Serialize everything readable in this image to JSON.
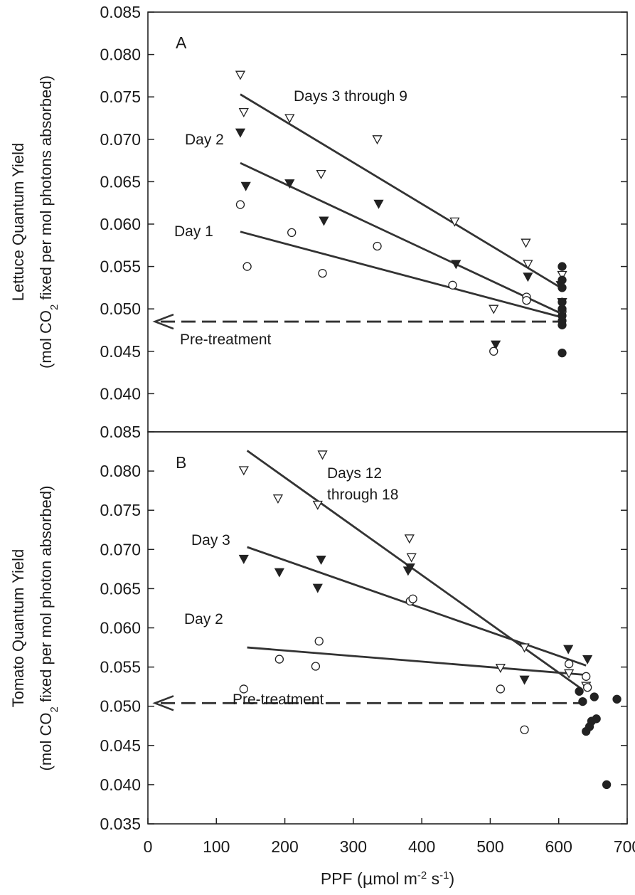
{
  "x_axis": {
    "label_prefix": "PPF (",
    "label_mu": "μ",
    "label_mol": "mol m",
    "label_exp1": "-2",
    "label_s": " s",
    "label_exp2": "-1",
    "label_close": ")",
    "ticks": [
      "0",
      "100",
      "200",
      "300",
      "400",
      "500",
      "600",
      "700"
    ]
  },
  "chart_data": [
    {
      "type": "scatter",
      "panel_label": "A",
      "ylabel_line1": "Lettuce Quantum Yield",
      "ylabel_line2_a": "(mol CO",
      "ylabel_line2_sub": "2",
      "ylabel_line2_b": " fixed per mol photons absorbed)",
      "xlim": [
        0,
        700
      ],
      "ylim": [
        0.035,
        0.085
      ],
      "y_ticks": [
        "0.085",
        "0.080",
        "0.075",
        "0.070",
        "0.065",
        "0.060",
        "0.055",
        "0.050",
        "0.045",
        "0.040"
      ],
      "grid": false,
      "series": [
        {
          "marker": "triangle-open",
          "points": [
            [
              135,
              0.0776
            ],
            [
              140,
              0.0732
            ],
            [
              207,
              0.0725
            ],
            [
              253,
              0.0659
            ],
            [
              335,
              0.07
            ],
            [
              448,
              0.0603
            ],
            [
              505,
              0.05
            ],
            [
              552,
              0.0578
            ],
            [
              555,
              0.0553
            ],
            [
              605,
              0.054
            ]
          ]
        },
        {
          "marker": "triangle-filled",
          "points": [
            [
              135,
              0.0708
            ],
            [
              143,
              0.0645
            ],
            [
              207,
              0.0648
            ],
            [
              257,
              0.0604
            ],
            [
              337,
              0.0624
            ],
            [
              450,
              0.0553
            ],
            [
              508,
              0.0458
            ],
            [
              555,
              0.0538
            ],
            [
              603,
              0.0528
            ],
            [
              605,
              0.0508
            ]
          ]
        },
        {
          "marker": "circle-open",
          "points": [
            [
              135,
              0.0623
            ],
            [
              145,
              0.055
            ],
            [
              210,
              0.059
            ],
            [
              255,
              0.0542
            ],
            [
              335,
              0.0574
            ],
            [
              445,
              0.0528
            ],
            [
              505,
              0.045
            ],
            [
              553,
              0.0514
            ],
            [
              553,
              0.051
            ],
            [
              605,
              0.0497
            ]
          ]
        },
        {
          "marker": "circle-filled",
          "points": [
            [
              605,
              0.055
            ],
            [
              605,
              0.0534
            ],
            [
              605,
              0.0525
            ],
            [
              605,
              0.0508
            ],
            [
              605,
              0.05
            ],
            [
              605,
              0.0492
            ],
            [
              605,
              0.0486
            ],
            [
              605,
              0.0481
            ],
            [
              605,
              0.0448
            ]
          ]
        }
      ],
      "fit_lines": [
        {
          "x": [
            135,
            605
          ],
          "y": [
            0.0753,
            0.0524
          ]
        },
        {
          "x": [
            135,
            605
          ],
          "y": [
            0.0672,
            0.0494
          ]
        },
        {
          "x": [
            135,
            605
          ],
          "y": [
            0.0591,
            0.049
          ]
        }
      ],
      "pretreatment_level": 0.0485,
      "annotations": [
        "Days 3 through 9",
        "Day 2",
        "Day 1",
        "Pre-treatment"
      ]
    },
    {
      "type": "scatter",
      "panel_label": "B",
      "ylabel_line1": "Tomato Quantum Yield",
      "ylabel_line2_a": "(mol CO",
      "ylabel_line2_sub": "2",
      "ylabel_line2_b": " fixed per mol photon absorbed)",
      "xlim": [
        0,
        700
      ],
      "ylim": [
        0.035,
        0.085
      ],
      "y_ticks": [
        "0.085",
        "0.080",
        "0.075",
        "0.070",
        "0.065",
        "0.060",
        "0.055",
        "0.050",
        "0.045",
        "0.040",
        "0.035"
      ],
      "grid": false,
      "series": [
        {
          "marker": "triangle-open",
          "points": [
            [
              140,
              0.0801
            ],
            [
              190,
              0.0765
            ],
            [
              248,
              0.0757
            ],
            [
              255,
              0.0821
            ],
            [
              382,
              0.0714
            ],
            [
              385,
              0.069
            ],
            [
              515,
              0.0549
            ],
            [
              550,
              0.0575
            ],
            [
              615,
              0.0542
            ],
            [
              640,
              0.0526
            ]
          ]
        },
        {
          "marker": "triangle-filled",
          "points": [
            [
              140,
              0.0688
            ],
            [
              192,
              0.0671
            ],
            [
              248,
              0.0651
            ],
            [
              253,
              0.0687
            ],
            [
              380,
              0.0673
            ],
            [
              383,
              0.0677
            ],
            [
              550,
              0.0534
            ],
            [
              614,
              0.0573
            ],
            [
              642,
              0.056
            ]
          ]
        },
        {
          "marker": "circle-open",
          "points": [
            [
              140,
              0.0522
            ],
            [
              192,
              0.056
            ],
            [
              245,
              0.0551
            ],
            [
              250,
              0.0583
            ],
            [
              383,
              0.0634
            ],
            [
              387,
              0.0637
            ],
            [
              515,
              0.0522
            ],
            [
              550,
              0.047
            ],
            [
              615,
              0.0554
            ],
            [
              640,
              0.0538
            ],
            [
              642,
              0.0524
            ]
          ]
        },
        {
          "marker": "circle-filled",
          "points": [
            [
              630,
              0.0519
            ],
            [
              635,
              0.0506
            ],
            [
              640,
              0.0468
            ],
            [
              645,
              0.0474
            ],
            [
              648,
              0.0481
            ],
            [
              652,
              0.0512
            ],
            [
              655,
              0.0484
            ],
            [
              670,
              0.04
            ],
            [
              685,
              0.0509
            ]
          ]
        }
      ],
      "fit_lines": [
        {
          "x": [
            145,
            632
          ],
          "y": [
            0.0826,
            0.0523
          ]
        },
        {
          "x": [
            145,
            640
          ],
          "y": [
            0.0703,
            0.0552
          ]
        },
        {
          "x": [
            145,
            640
          ],
          "y": [
            0.0575,
            0.054
          ]
        }
      ],
      "pretreatment_level": 0.0504,
      "annotations": [
        "Days 12",
        "through 18",
        "Day 3",
        "Day 2",
        "Pre-treatment"
      ]
    }
  ]
}
